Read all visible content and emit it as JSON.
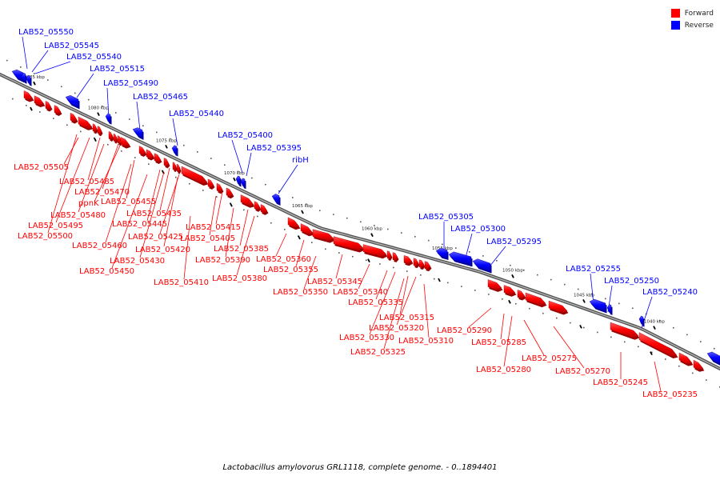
{
  "colors": {
    "forward": "#ff0000",
    "reverse": "#0000ff",
    "axis": "#777777"
  },
  "legend": [
    {
      "label": "Forward",
      "color": "#ff0000"
    },
    {
      "label": "Reverse",
      "color": "#0000ff"
    }
  ],
  "caption": "Lactobacillus amylovorus GRL1118, complete genome. - 0..1894401",
  "axis_ticks": [
    "1085 kbp",
    "1080 kbp",
    "1075 kbp",
    "1070 kbp",
    "1065 kbp",
    "1060 kbp",
    "1055 kbp",
    "1050 kbp",
    "1045 kbp",
    "1040 kbp"
  ],
  "reverse_genes": [
    "LAB52_05550",
    "LAB52_05545",
    "LAB52_05540",
    "LAB52_05515",
    "LAB52_05490",
    "LAB52_05465",
    "LAB52_05440",
    "LAB52_05400",
    "LAB52_05395",
    "ribH",
    "LAB52_05305",
    "LAB52_05300",
    "LAB52_05295",
    "LAB52_05255",
    "LAB52_05250",
    "LAB52_05240"
  ],
  "forward_genes": [
    "LAB52_05505",
    "LAB52_05485",
    "LAB52_05470",
    "ppnK",
    "LAB52_05455",
    "LAB52_05480",
    "LAB52_05435",
    "LAB52_05495",
    "LAB52_05445",
    "LAB52_05415",
    "LAB52_05500",
    "LAB52_05425",
    "LAB52_05405",
    "LAB52_05460",
    "LAB52_05420",
    "LAB52_05385",
    "LAB52_05430",
    "LAB52_05390",
    "LAB52_05360",
    "LAB52_05450",
    "LAB52_05380",
    "LAB52_05355",
    "LAB52_05410",
    "LAB52_05345",
    "LAB52_05350",
    "LAB52_05340",
    "LAB52_05335",
    "LAB52_05315",
    "LAB52_05320",
    "LAB52_05330",
    "LAB52_05310",
    "LAB52_05290",
    "LAB52_05325",
    "LAB52_05285",
    "LAB52_05275",
    "LAB52_05280",
    "LAB52_05270",
    "LAB52_05245",
    "LAB52_05235"
  ]
}
